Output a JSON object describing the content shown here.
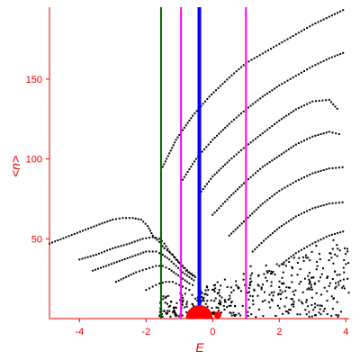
{
  "chart_data": {
    "type": "scatter",
    "xlabel": "E",
    "ylabel": "<n>",
    "xlim": [
      -4.9,
      4.1
    ],
    "ylim": [
      0,
      195
    ],
    "x_ticks": [
      -4,
      -2,
      0,
      2,
      4
    ],
    "y_ticks": [
      50,
      100,
      150
    ],
    "x_tick_labels": [
      "-4",
      "-2",
      "0",
      "2",
      "4"
    ],
    "y_tick_labels": [
      "50",
      "100",
      "150"
    ],
    "grid": false,
    "colors": {
      "axis": "#e60000",
      "points": "#000000",
      "line_green": "#006400",
      "line_magenta": "#ff00ff",
      "line_blue": "#0000ff",
      "marker_red": "#ff0000"
    },
    "vertical_lines": [
      {
        "x": -1.55,
        "color": "#006400",
        "width": "thin"
      },
      {
        "x": -0.95,
        "color": "#ff00ff",
        "width": "thin"
      },
      {
        "x": -0.4,
        "color": "#0000ff",
        "width": "thick"
      },
      {
        "x": 1.0,
        "color": "#ff00ff",
        "width": "thin"
      }
    ],
    "markers": [
      {
        "x": -0.4,
        "y": 0,
        "shape": "half-disc",
        "color": "#ff0000",
        "size": "large"
      },
      {
        "x": 0.15,
        "y": 2,
        "shape": "dot",
        "color": "#ff0000",
        "size": "small"
      }
    ],
    "curves": [
      {
        "points": [
          [
            -4.9,
            47
          ],
          [
            -4.4,
            51
          ],
          [
            -3.9,
            55
          ],
          [
            -3.4,
            59
          ],
          [
            -3.0,
            62
          ],
          [
            -2.7,
            63
          ],
          [
            -2.4,
            63
          ],
          [
            -2.15,
            62
          ],
          [
            -1.95,
            58
          ],
          [
            -1.8,
            52
          ],
          [
            -1.6,
            48
          ],
          [
            -1.45,
            44
          ],
          [
            -1.2,
            40
          ],
          [
            -1.0,
            35
          ],
          [
            -0.8,
            30
          ],
          [
            -0.6,
            27
          ],
          [
            -0.45,
            25
          ]
        ]
      },
      {
        "points": [
          [
            -4.0,
            37
          ],
          [
            -3.5,
            40
          ],
          [
            -3.0,
            44
          ],
          [
            -2.5,
            47
          ],
          [
            -2.1,
            50
          ],
          [
            -1.8,
            51
          ],
          [
            -1.6,
            50
          ],
          [
            -1.45,
            47
          ],
          [
            -1.3,
            42
          ],
          [
            -1.1,
            37
          ],
          [
            -0.9,
            33
          ],
          [
            -0.7,
            29
          ],
          [
            -0.5,
            26
          ]
        ]
      },
      {
        "points": [
          [
            -3.6,
            30
          ],
          [
            -3.2,
            33
          ],
          [
            -2.8,
            36
          ],
          [
            -2.4,
            39
          ],
          [
            -2.0,
            42
          ],
          [
            -1.7,
            42
          ],
          [
            -1.5,
            40
          ],
          [
            -1.3,
            37
          ],
          [
            -1.1,
            33
          ],
          [
            -0.9,
            29
          ],
          [
            -0.7,
            26
          ],
          [
            -0.5,
            23
          ]
        ]
      },
      {
        "points": [
          [
            -2.9,
            23
          ],
          [
            -2.6,
            26
          ],
          [
            -2.3,
            29
          ],
          [
            -2.0,
            31
          ],
          [
            -1.7,
            33
          ],
          [
            -1.5,
            33
          ],
          [
            -1.3,
            31
          ],
          [
            -1.1,
            28
          ],
          [
            -0.9,
            25
          ],
          [
            -0.7,
            22
          ],
          [
            -0.5,
            20
          ]
        ]
      },
      {
        "points": [
          [
            -2.0,
            18
          ],
          [
            -1.8,
            20
          ],
          [
            -1.6,
            22
          ],
          [
            -1.4,
            23
          ],
          [
            -1.2,
            23
          ],
          [
            -1.0,
            21
          ],
          [
            -0.8,
            19
          ],
          [
            -0.6,
            17
          ]
        ]
      },
      {
        "points": [
          [
            -1.5,
            95
          ],
          [
            -1.1,
            112
          ],
          [
            -0.6,
            127
          ],
          [
            -0.1,
            139
          ],
          [
            0.5,
            151
          ],
          [
            1.0,
            160
          ],
          [
            1.5,
            166
          ],
          [
            2.0,
            172
          ],
          [
            2.5,
            178
          ],
          [
            3.0,
            184
          ],
          [
            3.5,
            189
          ],
          [
            4.0,
            194
          ]
        ]
      },
      {
        "points": [
          [
            -0.9,
            87
          ],
          [
            -0.5,
            100
          ],
          [
            0.0,
            112
          ],
          [
            0.5,
            122
          ],
          [
            1.0,
            131
          ],
          [
            1.5,
            139
          ],
          [
            2.0,
            146
          ],
          [
            2.5,
            152
          ],
          [
            3.0,
            158
          ],
          [
            3.5,
            163
          ],
          [
            4.0,
            167
          ]
        ]
      },
      {
        "points": [
          [
            -0.4,
            78
          ],
          [
            0.0,
            89
          ],
          [
            0.5,
            99
          ],
          [
            1.0,
            108
          ],
          [
            1.5,
            116
          ],
          [
            2.0,
            124
          ],
          [
            2.5,
            131
          ],
          [
            3.0,
            136
          ],
          [
            3.5,
            137
          ],
          [
            3.8,
            130
          ]
        ]
      },
      {
        "points": [
          [
            0.0,
            65
          ],
          [
            0.5,
            76
          ],
          [
            1.0,
            86
          ],
          [
            1.5,
            95
          ],
          [
            2.0,
            102
          ],
          [
            2.5,
            109
          ],
          [
            3.0,
            114
          ],
          [
            3.5,
            117
          ],
          [
            3.9,
            115
          ]
        ]
      },
      {
        "points": [
          [
            0.5,
            52
          ],
          [
            1.0,
            62
          ],
          [
            1.5,
            72
          ],
          [
            2.0,
            80
          ],
          [
            2.5,
            86
          ],
          [
            3.0,
            91
          ],
          [
            3.5,
            94
          ],
          [
            4.0,
            95
          ]
        ]
      },
      {
        "points": [
          [
            1.2,
            42
          ],
          [
            1.6,
            50
          ],
          [
            2.0,
            57
          ],
          [
            2.5,
            64
          ],
          [
            3.0,
            69
          ],
          [
            3.5,
            72
          ],
          [
            4.0,
            73
          ]
        ]
      },
      {
        "points": [
          [
            2.0,
            33
          ],
          [
            2.5,
            41
          ],
          [
            3.0,
            47
          ],
          [
            3.5,
            52
          ],
          [
            4.0,
            55
          ]
        ]
      }
    ]
  }
}
